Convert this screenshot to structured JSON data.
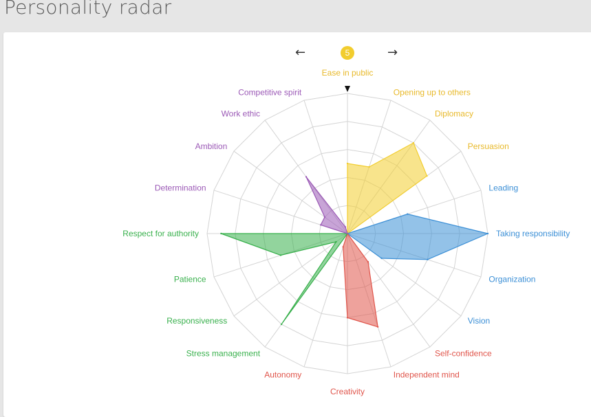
{
  "header": {
    "title": "Personality radar"
  },
  "nav": {
    "prev_label": "←",
    "next_label": "→",
    "current_score": "5"
  },
  "colors": {
    "yellow": "#f2cd2e",
    "yellow_text": "#e8b92a",
    "blue": "#3b8fd6",
    "red": "#e0554b",
    "green": "#38b04c",
    "purple": "#9b59b6",
    "grid": "#d4d4d4",
    "marker": "#111111"
  },
  "chart_data": {
    "type": "radar",
    "max_value": 10,
    "rings": 5,
    "selected_axis": "Ease in public",
    "axes": [
      {
        "label": "Ease in public",
        "value": 5,
        "group": "yellow"
      },
      {
        "label": "Opening up to others",
        "value": 5,
        "group": "yellow"
      },
      {
        "label": "Diplomacy",
        "value": 8,
        "group": "yellow"
      },
      {
        "label": "Persuasion",
        "value": 7,
        "group": "yellow"
      },
      {
        "label": "Leading",
        "value": 4.5,
        "group": "blue"
      },
      {
        "label": "Taking responsibility",
        "value": 10,
        "group": "blue"
      },
      {
        "label": "Organization",
        "value": 6,
        "group": "blue"
      },
      {
        "label": "Vision",
        "value": 3,
        "group": "blue"
      },
      {
        "label": "Self-confidence",
        "value": 2.5,
        "group": "red"
      },
      {
        "label": "Independent mind",
        "value": 7,
        "group": "red"
      },
      {
        "label": "Creativity",
        "value": 6,
        "group": "red"
      },
      {
        "label": "Autonomy",
        "value": 1,
        "group": "red"
      },
      {
        "label": "Stress management",
        "value": 8,
        "group": "green"
      },
      {
        "label": "Responsiveness",
        "value": 1,
        "group": "green"
      },
      {
        "label": "Patience",
        "value": 5,
        "group": "green"
      },
      {
        "label": "Respect for authority",
        "value": 9,
        "group": "green"
      },
      {
        "label": "Determination",
        "value": 2,
        "group": "purple"
      },
      {
        "label": "Ambition",
        "value": 2,
        "group": "purple"
      },
      {
        "label": "Work ethic",
        "value": 5,
        "group": "purple"
      },
      {
        "label": "Competitive spirit",
        "value": 0.5,
        "group": "purple"
      }
    ]
  }
}
